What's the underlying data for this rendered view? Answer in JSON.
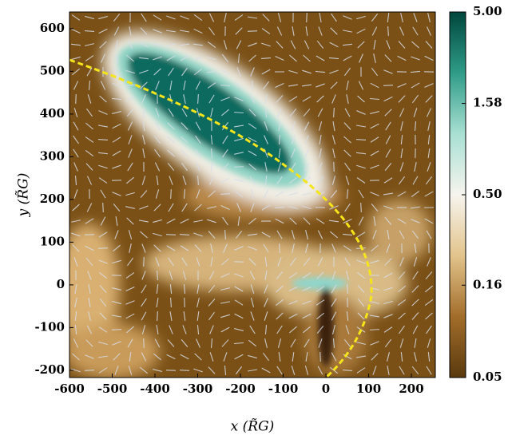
{
  "chart_data": {
    "type": "heatmap",
    "xlabel": "x (R̃G)",
    "ylabel": "y (R̃G)",
    "xlim": [
      -600,
      256
    ],
    "ylim": [
      -217,
      639
    ],
    "xticks": [
      -600,
      -500,
      -400,
      -300,
      -200,
      -100,
      0,
      100,
      200
    ],
    "yticks": [
      -200,
      -100,
      0,
      100,
      200,
      300,
      400,
      500,
      600
    ],
    "colorbar": {
      "lim": [
        0.05,
        5
      ],
      "log": true,
      "ticks": [
        {
          "value": 5,
          "label": "5.00"
        },
        1.58,
        {
          "value": 0.5,
          "label": "0.50"
        },
        0.16,
        0.05
      ],
      "colors": [
        "#5a3a0e",
        "#a26d2a",
        "#e2c48c",
        "#f6f4ee",
        "#a9e0d3",
        "#2f9c88",
        "#00463d"
      ]
    }
  }
}
